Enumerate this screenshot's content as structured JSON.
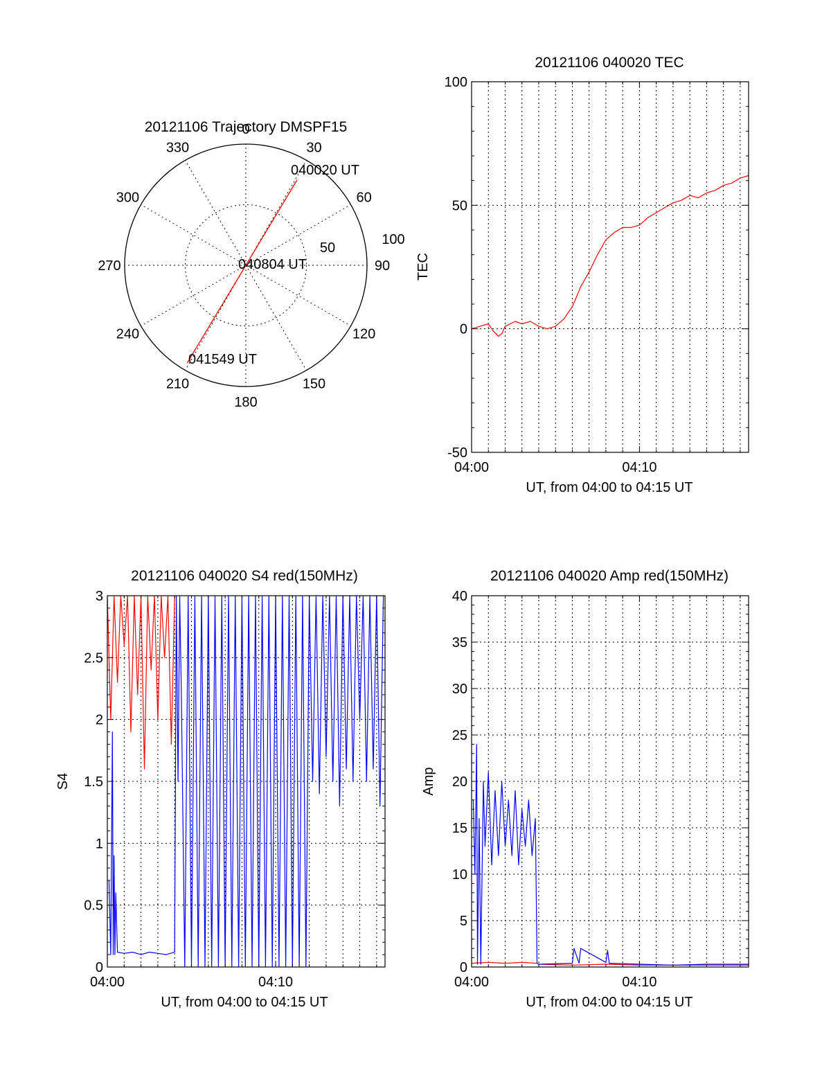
{
  "colors": {
    "series_red": "#ff0000",
    "series_blue": "#0000ff",
    "axis": "#000000",
    "grid": "#000000"
  },
  "chart_data": [
    {
      "id": "trajectory",
      "type": "polar",
      "title": "20121106 Trajectory DMSPF15",
      "azimuth_labels": [
        "0",
        "30",
        "60",
        "90",
        "120",
        "150",
        "180",
        "210",
        "240",
        "270",
        "300",
        "330"
      ],
      "radial_labels": [
        "50",
        "100"
      ],
      "rlim": [
        0,
        100
      ],
      "track": [
        {
          "az": 31,
          "r": 82
        },
        {
          "az": 31,
          "r": 0
        },
        {
          "az": 211,
          "r": 0
        },
        {
          "az": 211,
          "r": 94
        }
      ],
      "annotations": [
        "040020 UT",
        "040804 UT",
        "041549 UT"
      ],
      "grid": true
    },
    {
      "id": "tec",
      "type": "line",
      "title": "20121106 040020 TEC",
      "xlabel": "UT, from 04:00 to 04:15 UT",
      "ylabel": "TEC",
      "xlim": [
        0,
        16.5
      ],
      "ylim": [
        -50,
        100
      ],
      "xticks": [
        0,
        10
      ],
      "xtick_labels": [
        "04:00",
        "04:10"
      ],
      "yticks": [
        -50,
        0,
        50,
        100
      ],
      "ytick_labels": [
        "-50",
        "0",
        "50",
        "100"
      ],
      "grid": true,
      "series": [
        {
          "color": "red",
          "x": [
            0.0,
            0.5,
            1.0,
            1.3,
            1.6,
            1.8,
            2.0,
            2.3,
            2.6,
            3.0,
            3.5,
            4.0,
            4.5,
            5.0,
            5.5,
            6.0,
            6.5,
            7.0,
            7.5,
            8.0,
            8.5,
            9.0,
            9.5,
            10.0,
            10.5,
            11.0,
            11.5,
            12.0,
            12.5,
            13.0,
            13.5,
            14.0,
            14.5,
            15.0,
            15.5,
            16.0,
            16.5
          ],
          "y": [
            0,
            1,
            2,
            -1,
            -3,
            -2,
            1,
            2,
            3,
            2,
            3,
            1,
            0,
            1,
            4,
            9,
            17,
            23,
            30,
            36,
            39,
            41,
            41,
            42,
            45,
            47,
            49,
            51,
            52,
            54,
            53,
            55,
            56,
            58,
            59,
            61,
            62
          ]
        }
      ]
    },
    {
      "id": "s4",
      "type": "line",
      "title": "20121106 040020 S4 red(150MHz)",
      "xlabel": "UT, from 04:00 to 04:15 UT",
      "ylabel": "S4",
      "xlim": [
        0,
        16.5
      ],
      "ylim": [
        0,
        3
      ],
      "xticks": [
        0,
        10
      ],
      "xtick_labels": [
        "04:00",
        "04:10"
      ],
      "yticks": [
        0,
        0.5,
        1,
        1.5,
        2,
        2.5,
        3
      ],
      "ytick_labels": [
        "0",
        "0.5",
        "1",
        "1.5",
        "2",
        "2.5",
        "3"
      ],
      "grid": true,
      "series": [
        {
          "color": "red",
          "x": [
            0.0,
            0.2,
            0.4,
            0.6,
            0.8,
            1.0,
            1.2,
            1.4,
            1.6,
            1.8,
            2.0,
            2.2,
            2.4,
            2.6,
            2.8,
            3.0,
            3.2,
            3.4,
            3.6,
            3.8,
            4.0
          ],
          "y": [
            3.0,
            2.0,
            3.0,
            2.3,
            3.0,
            2.6,
            3.0,
            1.9,
            3.0,
            2.2,
            3.0,
            1.6,
            3.0,
            2.4,
            3.0,
            2.0,
            3.0,
            2.5,
            3.0,
            1.8,
            3.0
          ]
        },
        {
          "color": "blue",
          "x": [
            0.1,
            0.2,
            0.3,
            0.35,
            0.4,
            0.45,
            0.5,
            0.6,
            1.0,
            1.5,
            2.0,
            2.5,
            3.0,
            3.5,
            4.0,
            4.1,
            4.2,
            4.3,
            4.4,
            4.6,
            4.8,
            5.0,
            5.2,
            5.4,
            5.6,
            5.8,
            6.0,
            6.2,
            6.4,
            6.6,
            6.8,
            7.0,
            7.2,
            7.4,
            7.6,
            7.8,
            8.0,
            8.2,
            8.4,
            8.6,
            8.8,
            9.0,
            9.2,
            9.4,
            9.6,
            9.8,
            10.0,
            10.2,
            10.4,
            10.6,
            10.8,
            11.0,
            11.2,
            11.4,
            11.6,
            11.8,
            12.0,
            12.2,
            12.4,
            12.6,
            12.8,
            13.0,
            13.2,
            13.4,
            13.6,
            13.8,
            14.0,
            14.2,
            14.4,
            14.6,
            14.8,
            15.0,
            15.2,
            15.4,
            15.6,
            15.8,
            16.0,
            16.2,
            16.4
          ],
          "y": [
            0.7,
            0.1,
            1.9,
            0.1,
            0.9,
            0.1,
            0.6,
            0.12,
            0.11,
            0.12,
            0.1,
            0.12,
            0.11,
            0.1,
            0.12,
            3.0,
            1.5,
            3.0,
            2.2,
            0.0,
            3.0,
            0.0,
            3.0,
            0.0,
            3.0,
            0.0,
            3.0,
            0.0,
            3.0,
            0.0,
            3.0,
            0.0,
            3.0,
            0.0,
            3.0,
            0.0,
            3.0,
            0.0,
            3.0,
            0.0,
            3.0,
            0.0,
            3.0,
            0.0,
            3.0,
            0.0,
            3.0,
            0.0,
            3.0,
            0.0,
            3.0,
            0.0,
            3.0,
            0.0,
            3.0,
            0.0,
            3.0,
            1.5,
            3.0,
            1.4,
            3.0,
            1.7,
            3.0,
            1.5,
            3.0,
            1.3,
            3.0,
            1.6,
            3.0,
            1.5,
            3.0,
            2.0,
            3.0,
            1.5,
            3.0,
            1.6,
            3.0,
            1.3,
            3.0
          ]
        }
      ]
    },
    {
      "id": "amp",
      "type": "line",
      "title": "20121106 040020 Amp red(150MHz)",
      "xlabel": "UT, from 04:00 to 04:15 UT",
      "ylabel": "Amp",
      "xlim": [
        0,
        16.5
      ],
      "ylim": [
        0,
        40
      ],
      "xticks": [
        0,
        10
      ],
      "xtick_labels": [
        "04:00",
        "04:10"
      ],
      "yticks": [
        0,
        5,
        10,
        15,
        20,
        25,
        30,
        35,
        40
      ],
      "ytick_labels": [
        "0",
        "5",
        "10",
        "15",
        "20",
        "25",
        "30",
        "35",
        "40"
      ],
      "grid": true,
      "series": [
        {
          "color": "red",
          "x": [
            0.0,
            1.0,
            2.0,
            3.0,
            3.9,
            4.0,
            6.0,
            8.0,
            10.0,
            12.0,
            14.0,
            16.5
          ],
          "y": [
            0.4,
            0.5,
            0.4,
            0.5,
            0.4,
            0.3,
            0.2,
            0.3,
            0.2,
            0.2,
            0.2,
            0.2
          ]
        },
        {
          "color": "blue",
          "x": [
            0.1,
            0.2,
            0.3,
            0.35,
            0.45,
            0.55,
            0.7,
            0.8,
            1.0,
            1.2,
            1.4,
            1.6,
            1.8,
            2.0,
            2.2,
            2.4,
            2.6,
            2.8,
            3.0,
            3.2,
            3.4,
            3.6,
            3.8,
            3.9,
            4.0,
            6.0,
            6.1,
            6.4,
            6.5,
            8.0,
            8.1,
            8.2,
            10.0,
            12.0,
            14.0,
            16.5
          ],
          "y": [
            18,
            10,
            24,
            0.3,
            16,
            0.3,
            20,
            13,
            21,
            11,
            19,
            12,
            20,
            13,
            18,
            12,
            19,
            11,
            17,
            13,
            18,
            12,
            16,
            0.4,
            0.3,
            0.4,
            2,
            0.4,
            2,
            0.5,
            1.8,
            0.4,
            0.3,
            0.2,
            0.3,
            0.3
          ]
        }
      ]
    }
  ]
}
